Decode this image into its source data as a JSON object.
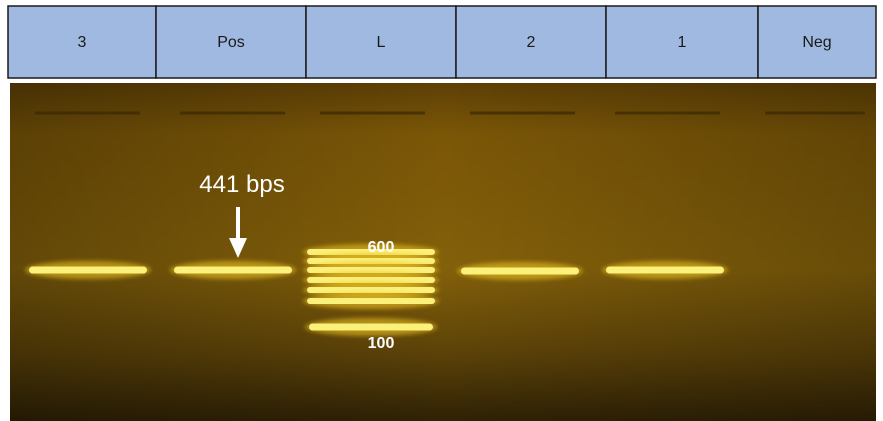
{
  "header": {
    "lanes": [
      "3",
      "Pos",
      "L",
      "2",
      "1",
      "Neg"
    ]
  },
  "gel": {
    "annotation": "441 bps",
    "ladder_labels": [
      "600",
      "100"
    ]
  }
}
